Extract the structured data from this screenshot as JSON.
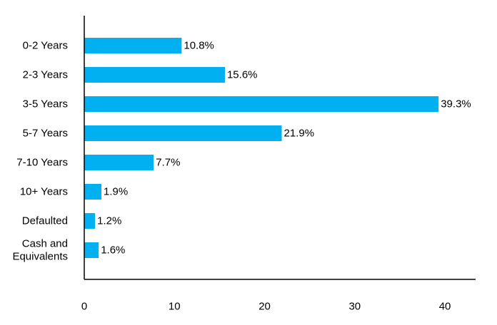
{
  "chart_data": {
    "type": "bar",
    "orientation": "horizontal",
    "title": "",
    "xlabel": "",
    "ylabel": "",
    "categories": [
      [
        "0-2 Years"
      ],
      [
        "2-3 Years"
      ],
      [
        "3-5 Years"
      ],
      [
        "5-7 Years"
      ],
      [
        "7-10 Years"
      ],
      [
        "10+ Years"
      ],
      [
        "Defaulted"
      ],
      [
        "Cash and",
        "Equivalents"
      ]
    ],
    "values": [
      10.8,
      15.6,
      39.3,
      21.9,
      7.7,
      1.9,
      1.2,
      1.6
    ],
    "data_labels": [
      "10.8%",
      "15.6%",
      "39.3%",
      "21.9%",
      "7.7%",
      "1.9%",
      "1.2%",
      "1.6%"
    ],
    "xlim": [
      0,
      43.4
    ],
    "xticks": [
      0,
      10,
      20,
      30,
      40
    ],
    "xtick_labels": [
      "0",
      "10",
      "20",
      "30",
      "40"
    ],
    "grid": false,
    "legend": "none",
    "bar_color": "#00B0F0",
    "axis_color": "#000000"
  }
}
